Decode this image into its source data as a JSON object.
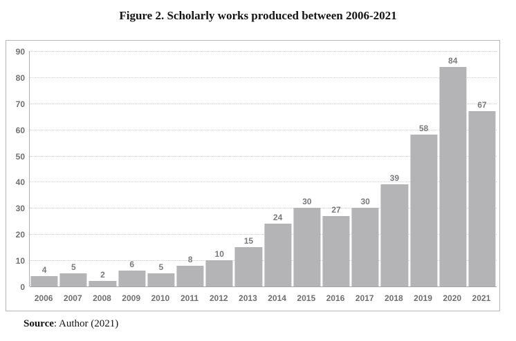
{
  "title": "Figure 2. Scholarly works produced between 2006-2021",
  "source": {
    "label": "Source",
    "text": ": Author (2021)"
  },
  "colors": {
    "bar": "#b4b4b7",
    "bar_label": "#7a7a7d",
    "axis_label": "#6f6f72",
    "gridline": "#cfcfd2",
    "axis_line": "#a5a5a8",
    "frame_border": "#b6b6b9",
    "title_text": "#141414"
  },
  "chart_data": {
    "type": "bar",
    "title": "Figure 2. Scholarly works produced between 2006-2021",
    "categories": [
      "2006",
      "2007",
      "2008",
      "2009",
      "2010",
      "2011",
      "2012",
      "2013",
      "2014",
      "2015",
      "2016",
      "2017",
      "2018",
      "2019",
      "2020",
      "2021"
    ],
    "values": [
      4,
      5,
      2,
      6,
      5,
      8,
      10,
      15,
      24,
      30,
      27,
      30,
      39,
      58,
      84,
      67
    ],
    "xlabel": "",
    "ylabel": "",
    "ylim": [
      0,
      90
    ],
    "yticks": [
      0,
      10,
      20,
      30,
      40,
      50,
      60,
      70,
      80,
      90
    ],
    "grid": true,
    "gridline_style": "dotted",
    "legend": false,
    "bar_labels": true,
    "bar_label_position": "outside-end"
  }
}
